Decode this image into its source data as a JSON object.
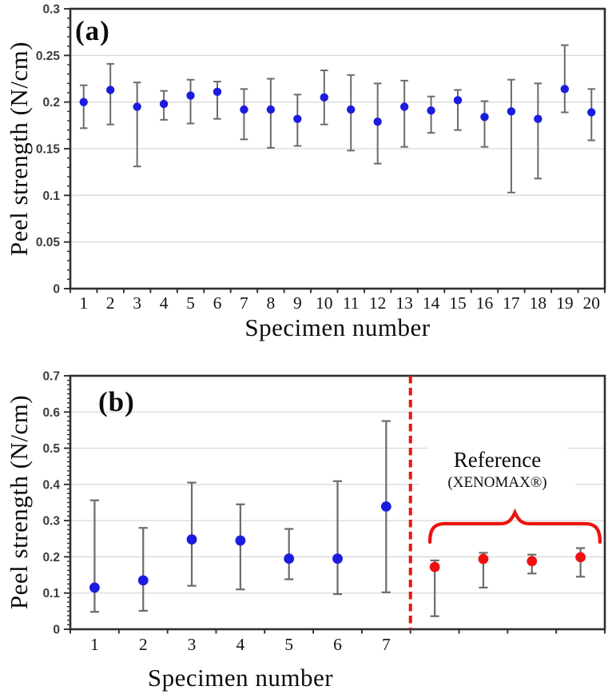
{
  "colors": {
    "blue_marker": "#1c1ce0",
    "red_marker": "#ee1111",
    "red_accent": "#ea1310",
    "error_bar": "#6b6b6b",
    "gridline": "#d9d9d9",
    "frame": "#2f2f2f",
    "axis_number": "#3c3c3c",
    "tick_label": "#141414"
  },
  "chart_data": [
    {
      "id": "a",
      "type": "scatter",
      "panel_label": "(a)",
      "xlabel": "Specimen number",
      "ylabel": "Peel strength (N/cm)",
      "ylim": [
        0,
        0.3
      ],
      "ytick_step": 0.05,
      "minor_tick_step": 0.01,
      "ytick_labels": [
        "0",
        "0.05",
        "0.1",
        "0.15",
        "0.2",
        "0.25",
        "0.3"
      ],
      "grid": "horizontal-major",
      "legend": "none",
      "n_categories": 20,
      "xtick_labels": [
        "1",
        "2",
        "3",
        "4",
        "5",
        "6",
        "7",
        "8",
        "9",
        "10",
        "11",
        "12",
        "13",
        "14",
        "15",
        "16",
        "17",
        "18",
        "19",
        "20"
      ],
      "series": [
        {
          "name": "specimen-peel-strength",
          "marker": "circle",
          "color": "#1c1ce0",
          "x": [
            1,
            2,
            3,
            4,
            5,
            6,
            7,
            8,
            9,
            10,
            11,
            12,
            13,
            14,
            15,
            16,
            17,
            18,
            19,
            20
          ],
          "y": [
            0.2,
            0.213,
            0.195,
            0.198,
            0.207,
            0.211,
            0.192,
            0.192,
            0.182,
            0.205,
            0.192,
            0.179,
            0.195,
            0.191,
            0.202,
            0.184,
            0.19,
            0.182,
            0.214,
            0.189
          ],
          "err_lo": [
            0.172,
            0.176,
            0.131,
            0.181,
            0.177,
            0.182,
            0.16,
            0.151,
            0.153,
            0.176,
            0.148,
            0.134,
            0.152,
            0.167,
            0.17,
            0.152,
            0.103,
            0.118,
            0.189,
            0.159
          ],
          "err_hi": [
            0.218,
            0.241,
            0.221,
            0.212,
            0.224,
            0.222,
            0.214,
            0.225,
            0.208,
            0.234,
            0.229,
            0.22,
            0.223,
            0.206,
            0.213,
            0.201,
            0.224,
            0.22,
            0.261,
            0.214
          ]
        }
      ]
    },
    {
      "id": "b",
      "type": "scatter",
      "panel_label": "(b)",
      "xlabel": "Specimen number",
      "ylabel": "Peel strength (N/cm)",
      "ylim": [
        0,
        0.7
      ],
      "ytick_step": 0.1,
      "minor_tick_step": 0.0125,
      "ytick_labels": [
        "0",
        "0.1",
        "0.2",
        "0.3",
        "0.4",
        "0.5",
        "0.6",
        "0.7"
      ],
      "grid": "horizontal-major",
      "legend": "none",
      "n_categories": 11,
      "xtick_labels": [
        "1",
        "2",
        "3",
        "4",
        "5",
        "6",
        "7",
        "",
        "",
        "",
        ""
      ],
      "divider_after_category": 7,
      "annotation": {
        "title": "Reference",
        "subtitle": "(XENOMAX®)"
      },
      "series": [
        {
          "name": "specimen-peel-strength",
          "marker": "circle",
          "color": "#1c1ce0",
          "x": [
            1,
            2,
            3,
            4,
            5,
            6,
            7
          ],
          "y": [
            0.115,
            0.135,
            0.248,
            0.245,
            0.195,
            0.195,
            0.339
          ],
          "err_lo": [
            0.048,
            0.051,
            0.12,
            0.11,
            0.138,
            0.097,
            0.102
          ],
          "err_hi": [
            0.356,
            0.28,
            0.405,
            0.345,
            0.277,
            0.409,
            0.575
          ]
        },
        {
          "name": "reference-xenomax",
          "marker": "circle",
          "color": "#ee1111",
          "x": [
            8,
            9,
            10,
            11
          ],
          "y": [
            0.172,
            0.194,
            0.188,
            0.199
          ],
          "err_lo": [
            0.036,
            0.115,
            0.154,
            0.145
          ],
          "err_hi": [
            0.19,
            0.211,
            0.206,
            0.224
          ]
        }
      ]
    }
  ]
}
